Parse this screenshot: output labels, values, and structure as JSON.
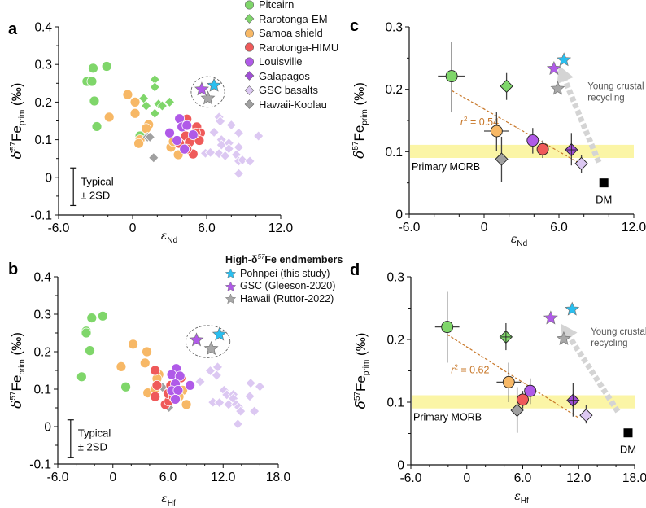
{
  "panel_labels": [
    "a",
    "b",
    "c",
    "d"
  ],
  "legend": {
    "items": [
      {
        "name": "Pitcairn",
        "marker": "circle",
        "color": "#7fd66a"
      },
      {
        "name": "Rarotonga-EM",
        "marker": "diamond",
        "color": "#7fd66a"
      },
      {
        "name": "Samoa shield",
        "marker": "circle",
        "color": "#f7b866"
      },
      {
        "name": "Rarotonga-HIMU",
        "marker": "circle",
        "color": "#ef5a5a"
      },
      {
        "name": "Louisville",
        "marker": "circle",
        "color": "#b05ae8"
      },
      {
        "name": "Galapagos",
        "marker": "diamond",
        "color": "#a04fd6"
      },
      {
        "name": "GSC basalts",
        "marker": "diamond",
        "color": "#dcc8f2"
      },
      {
        "name": "Hawaii-Koolau",
        "marker": "diamond",
        "color": "#a0a0a0"
      }
    ],
    "endmembers_title": {
      "pre": "High-δ",
      "sup": "57",
      "post": "Fe endmembers"
    },
    "endmembers": [
      {
        "name": "Pohnpei (this study)",
        "marker": "star",
        "color": "#29bff0"
      },
      {
        "name": "GSC (Gleeson-2020)",
        "marker": "star",
        "color": "#b05ae8"
      },
      {
        "name": "Hawaii (Ruttor-2022)",
        "marker": "star",
        "color": "#a8a8a8"
      }
    ]
  },
  "ylabel": {
    "delta": "δ",
    "sup": "57",
    "main": "Fe",
    "sub": "prim",
    "unit": " (‰)"
  },
  "chart_data": [
    {
      "panel": "a",
      "type": "scatter",
      "xlabel": {
        "main": "ε",
        "sub": "Nd"
      },
      "xlim": [
        -6,
        12
      ],
      "ylim": [
        -0.1,
        0.4
      ],
      "xticks": [
        -6,
        0,
        6,
        12
      ],
      "xtick_labels": [
        "-6.0",
        "0",
        "6.0",
        "12.0"
      ],
      "yticks": [
        0.4,
        0.3,
        0.2,
        0.1,
        0,
        -0.1
      ],
      "ytick_labels": [
        "0.4",
        "0.3",
        "0.2",
        "0.1",
        "0",
        "-0.1"
      ],
      "series": [
        {
          "name": "Pitcairn",
          "points": [
            [
              -3.2,
              0.29
            ],
            [
              -2.1,
              0.295
            ],
            [
              -3.7,
              0.255
            ],
            [
              -3.3,
              0.255
            ],
            [
              -3.1,
              0.203
            ],
            [
              -2.9,
              0.135
            ],
            [
              0.6,
              0.11
            ]
          ]
        },
        {
          "name": "Samoa shield",
          "points": [
            [
              -0.4,
              0.22
            ],
            [
              0.2,
              0.2
            ],
            [
              0.2,
              0.17
            ],
            [
              -1.9,
              0.16
            ],
            [
              1.3,
              0.14
            ],
            [
              1.1,
              0.13
            ],
            [
              0.6,
              0.1
            ],
            [
              0.5,
              0.09
            ],
            [
              3.1,
              0.08
            ],
            [
              3.7,
              0.06
            ],
            [
              3.3,
              0.095
            ]
          ]
        },
        {
          "name": "Rarotonga-EM",
          "points": [
            [
              1.8,
              0.26
            ],
            [
              1.8,
              0.24
            ],
            [
              0.9,
              0.21
            ],
            [
              1.1,
              0.19
            ],
            [
              2.1,
              0.195
            ],
            [
              2.4,
              0.19
            ],
            [
              3.0,
              0.2
            ],
            [
              1.8,
              0.17
            ]
          ]
        },
        {
          "name": "Hawaii-Koolau",
          "points": [
            [
              1.2,
              0.107
            ],
            [
              1.4,
              0.107
            ],
            [
              1.7,
              0.052
            ]
          ]
        },
        {
          "name": "Rarotonga-HIMU",
          "points": [
            [
              4.4,
              0.155
            ],
            [
              4.3,
              0.11
            ],
            [
              4.6,
              0.093
            ],
            [
              5.2,
              0.134
            ],
            [
              5.5,
              0.118
            ],
            [
              5.4,
              0.098
            ],
            [
              4.9,
              0.062
            ],
            [
              4.4,
              0.075
            ],
            [
              3.8,
              0.09
            ],
            [
              5.1,
              0.118
            ]
          ]
        },
        {
          "name": "Louisville",
          "points": [
            [
              3.8,
              0.156
            ],
            [
              4.0,
              0.134
            ],
            [
              4.4,
              0.138
            ],
            [
              3.0,
              0.118
            ],
            [
              3.6,
              0.098
            ],
            [
              4.2,
              0.075
            ],
            [
              4.9,
              0.113
            ]
          ]
        },
        {
          "name": "GSC basalts",
          "points": [
            [
              7.0,
              0.16
            ],
            [
              7.1,
              0.149
            ],
            [
              8.0,
              0.139
            ],
            [
              8.6,
              0.118
            ],
            [
              10.2,
              0.11
            ],
            [
              6.6,
              0.12
            ],
            [
              7.2,
              0.1
            ],
            [
              7.2,
              0.086
            ],
            [
              7.8,
              0.091
            ],
            [
              7.8,
              0.076
            ],
            [
              8.6,
              0.08
            ],
            [
              5.9,
              0.064
            ],
            [
              6.3,
              0.066
            ],
            [
              7.0,
              0.063
            ],
            [
              7.5,
              0.057
            ],
            [
              8.4,
              0.06
            ],
            [
              8.6,
              0.043
            ],
            [
              8.9,
              0.046
            ],
            [
              9.5,
              0.043
            ],
            [
              8.6,
              0.01
            ]
          ]
        },
        {
          "name": "GSC (Gleeson-2020)",
          "points": [
            [
              5.6,
              0.234
            ]
          ]
        },
        {
          "name": "Pohnpei (this study)",
          "points": [
            [
              6.6,
              0.244
            ]
          ]
        },
        {
          "name": "Hawaii (Ruttor-2022)",
          "points": [
            [
              6.1,
              0.21
            ]
          ]
        }
      ],
      "typical_error": {
        "x": -4.8,
        "y": -0.025,
        "err": 0.05,
        "label1": "Typical",
        "label2": "± 2SD"
      }
    },
    {
      "panel": "b",
      "type": "scatter",
      "xlabel": {
        "main": "ε",
        "sub": "Hf"
      },
      "xlim": [
        -6,
        18
      ],
      "ylim": [
        -0.1,
        0.4
      ],
      "xticks": [
        -6,
        0,
        6,
        12,
        18
      ],
      "xtick_labels": [
        "-6.0",
        "0",
        "6.0",
        "12.0",
        "18.0"
      ],
      "yticks": [
        0.4,
        0.3,
        0.2,
        0.1,
        0,
        -0.1
      ],
      "ytick_labels": [
        "0.4",
        "0.3",
        "0.2",
        "0.1",
        "0",
        "-0.1"
      ],
      "series": [
        {
          "name": "Pitcairn",
          "points": [
            [
              -2.3,
              0.29
            ],
            [
              -1.1,
              0.295
            ],
            [
              -2.9,
              0.255
            ],
            [
              -2.9,
              0.25
            ],
            [
              -2.5,
              0.203
            ],
            [
              -3.4,
              0.133
            ],
            [
              1.4,
              0.106
            ]
          ]
        },
        {
          "name": "Samoa shield",
          "points": [
            [
              2.2,
              0.22
            ],
            [
              3.7,
              0.2
            ],
            [
              0.9,
              0.16
            ],
            [
              3.5,
              0.17
            ],
            [
              5.0,
              0.139
            ],
            [
              4.8,
              0.128
            ],
            [
              3.8,
              0.09
            ],
            [
              4.6,
              0.1
            ],
            [
              7.6,
              0.097
            ],
            [
              7.2,
              0.08
            ],
            [
              8.0,
              0.059
            ],
            [
              7.4,
              0.132
            ]
          ]
        },
        {
          "name": "Hawaii-Koolau",
          "points": [
            [
              5.4,
              0.105
            ],
            [
              6.1,
              0.051
            ]
          ]
        },
        {
          "name": "Rarotonga-HIMU",
          "points": [
            [
              4.6,
              0.15
            ],
            [
              4.8,
              0.11
            ],
            [
              4.6,
              0.08
            ],
            [
              5.7,
              0.059
            ],
            [
              6.1,
              0.068
            ],
            [
              6.0,
              0.088
            ],
            [
              6.6,
              0.08
            ],
            [
              7.4,
              0.13
            ],
            [
              6.3,
              0.11
            ]
          ]
        },
        {
          "name": "Louisville",
          "points": [
            [
              6.9,
              0.155
            ],
            [
              6.4,
              0.139
            ],
            [
              7.3,
              0.135
            ],
            [
              8.4,
              0.11
            ],
            [
              6.8,
              0.114
            ],
            [
              6.4,
              0.096
            ],
            [
              7.1,
              0.097
            ],
            [
              6.8,
              0.073
            ]
          ]
        },
        {
          "name": "GSC basalts",
          "points": [
            [
              11.4,
              0.159
            ],
            [
              10.6,
              0.149
            ],
            [
              11.3,
              0.137
            ],
            [
              9.5,
              0.12
            ],
            [
              12.1,
              0.097
            ],
            [
              12.4,
              0.085
            ],
            [
              13.1,
              0.086
            ],
            [
              13.1,
              0.075
            ],
            [
              10.9,
              0.065
            ],
            [
              11.6,
              0.064
            ],
            [
              12.6,
              0.059
            ],
            [
              13.4,
              0.059
            ],
            [
              13.7,
              0.052
            ],
            [
              13.9,
              0.041
            ],
            [
              15.0,
              0.116
            ],
            [
              16.0,
              0.107
            ],
            [
              14.9,
              0.081
            ],
            [
              15.4,
              0.041
            ],
            [
              13.6,
              0.007
            ]
          ]
        },
        {
          "name": "GSC (Gleeson-2020)",
          "points": [
            [
              9.1,
              0.231
            ]
          ]
        },
        {
          "name": "Pohnpei (this study)",
          "points": [
            [
              11.6,
              0.246
            ]
          ]
        },
        {
          "name": "Hawaii (Ruttor-2022)",
          "points": [
            [
              10.7,
              0.208
            ]
          ]
        }
      ],
      "typical_error": {
        "x": -4.6,
        "y": -0.032,
        "err": 0.05,
        "label1": "Typical",
        "label2": "± 2SD"
      }
    },
    {
      "panel": "c",
      "type": "scatter",
      "xlabel": {
        "main": "ε",
        "sub": "Nd"
      },
      "xlim": [
        -6,
        12
      ],
      "ylim": [
        0,
        0.3
      ],
      "xticks": [
        -6,
        0,
        6,
        12
      ],
      "xtick_labels": [
        "-6.0",
        "0",
        "6.0",
        "12.0"
      ],
      "yticks": [
        0.3,
        0.2,
        0.1,
        0
      ],
      "ytick_labels": [
        "0.3",
        "0.2",
        "0.1",
        "0"
      ],
      "morb_band": {
        "y": [
          0.09,
          0.111
        ],
        "label": "Primary MORB",
        "color": "#fbf5a6"
      },
      "trend": {
        "from": [
          -2.6,
          0.198
        ],
        "to": [
          7.6,
          0.082
        ],
        "label_pre": "r",
        "label_sup": "2",
        "label_post": " = 0.54",
        "label_at": [
          -1.9,
          0.142
        ],
        "color": "#c8782a"
      },
      "arrow": {
        "from": [
          9.2,
          0.083
        ],
        "to": [
          6.0,
          0.238
        ],
        "label1": "Young crustal",
        "label2": "recycling",
        "label_at": [
          8.3,
          0.2
        ]
      },
      "means": [
        {
          "name": "Pitcairn",
          "x": -2.6,
          "y": 0.221,
          "ylo": 0.163,
          "yhi": 0.276,
          "xerr": 1.1
        },
        {
          "name": "Rarotonga-EM",
          "x": 1.8,
          "y": 0.205,
          "ylo": 0.183,
          "yhi": 0.226,
          "xerr": 0
        },
        {
          "name": "Samoa shield",
          "x": 1.0,
          "y": 0.133,
          "ylo": 0.101,
          "yhi": 0.163,
          "xerr": 1.0
        },
        {
          "name": "Hawaii-Koolau",
          "x": 1.4,
          "y": 0.088,
          "ylo": 0.052,
          "yhi": 0.124,
          "xerr": 0
        },
        {
          "name": "Louisville",
          "x": 3.9,
          "y": 0.118,
          "ylo": 0.097,
          "yhi": 0.138,
          "xerr": 0
        },
        {
          "name": "Rarotonga-HIMU",
          "x": 4.7,
          "y": 0.104,
          "ylo": 0.09,
          "yhi": 0.118,
          "xerr": 0
        },
        {
          "name": "Galapagos",
          "x": 7.0,
          "y": 0.103,
          "ylo": 0.078,
          "yhi": 0.13,
          "xerr": 0.3
        },
        {
          "name": "GSC basalts",
          "x": 7.8,
          "y": 0.081,
          "ylo": 0.066,
          "yhi": 0.095,
          "xerr": 0
        }
      ],
      "endmembers": [
        {
          "name": "GSC (Gleeson-2020)",
          "x": 5.6,
          "y": 0.233
        },
        {
          "name": "Pohnpei (this study)",
          "x": 6.4,
          "y": 0.247
        },
        {
          "name": "Hawaii (Ruttor-2022)",
          "x": 5.9,
          "y": 0.201
        }
      ],
      "dm": {
        "label": "DM",
        "x": 9.6,
        "y": 0.05
      }
    },
    {
      "panel": "d",
      "type": "scatter",
      "xlabel": {
        "main": "ε",
        "sub": "Hf"
      },
      "xlim": [
        -6,
        18
      ],
      "ylim": [
        0,
        0.3
      ],
      "xticks": [
        -6,
        0,
        6,
        12,
        18
      ],
      "xtick_labels": [
        "-6.0",
        "0",
        "6.0",
        "12.0",
        "18.0"
      ],
      "yticks": [
        0.3,
        0.2,
        0.1,
        0
      ],
      "ytick_labels": [
        "0.3",
        "0.2",
        "0.1",
        "0"
      ],
      "morb_band": {
        "y": [
          0.09,
          0.111
        ],
        "label": "Primary MORB",
        "color": "#fbf5a6"
      },
      "trend": {
        "from": [
          -2.1,
          0.208
        ],
        "to": [
          12.0,
          0.075
        ],
        "label_pre": "r",
        "label_sup": "2",
        "label_post": " = 0.62",
        "label_at": [
          -1.7,
          0.146
        ],
        "color": "#c8782a"
      },
      "arrow": {
        "from": [
          16.2,
          0.085
        ],
        "to": [
          10.1,
          0.225
        ],
        "label1": "Young crustal",
        "label2": "recycling",
        "label_at": [
          13.3,
          0.208
        ]
      },
      "means": [
        {
          "name": "Pitcairn",
          "x": -2.1,
          "y": 0.22,
          "ylo": 0.163,
          "yhi": 0.276,
          "xerr": 1.3
        },
        {
          "name": "Rarotonga-EM",
          "x": 4.2,
          "y": 0.204,
          "ylo": 0.183,
          "yhi": 0.226,
          "xerr": 0.5
        },
        {
          "name": "Samoa shield",
          "x": 4.5,
          "y": 0.132,
          "ylo": 0.1,
          "yhi": 0.163,
          "xerr": 1.3
        },
        {
          "name": "Hawaii-Koolau",
          "x": 5.4,
          "y": 0.087,
          "ylo": 0.051,
          "yhi": 0.124,
          "xerr": 0
        },
        {
          "name": "Rarotonga-HIMU",
          "x": 6.0,
          "y": 0.104,
          "ylo": 0.09,
          "yhi": 0.118,
          "xerr": 0
        },
        {
          "name": "Louisville",
          "x": 6.8,
          "y": 0.118,
          "ylo": 0.097,
          "yhi": 0.138,
          "xerr": 0
        },
        {
          "name": "Galapagos",
          "x": 11.4,
          "y": 0.103,
          "ylo": 0.077,
          "yhi": 0.13,
          "xerr": 0.4
        },
        {
          "name": "GSC basalts",
          "x": 12.8,
          "y": 0.079,
          "ylo": 0.066,
          "yhi": 0.095,
          "xerr": 0
        }
      ],
      "endmembers": [
        {
          "name": "GSC (Gleeson-2020)",
          "x": 9.0,
          "y": 0.234
        },
        {
          "name": "Pohnpei (this study)",
          "x": 11.3,
          "y": 0.248
        },
        {
          "name": "Hawaii (Ruttor-2022)",
          "x": 10.4,
          "y": 0.201
        }
      ],
      "dm": {
        "label": "DM",
        "x": 17.3,
        "y": 0.051
      }
    }
  ]
}
